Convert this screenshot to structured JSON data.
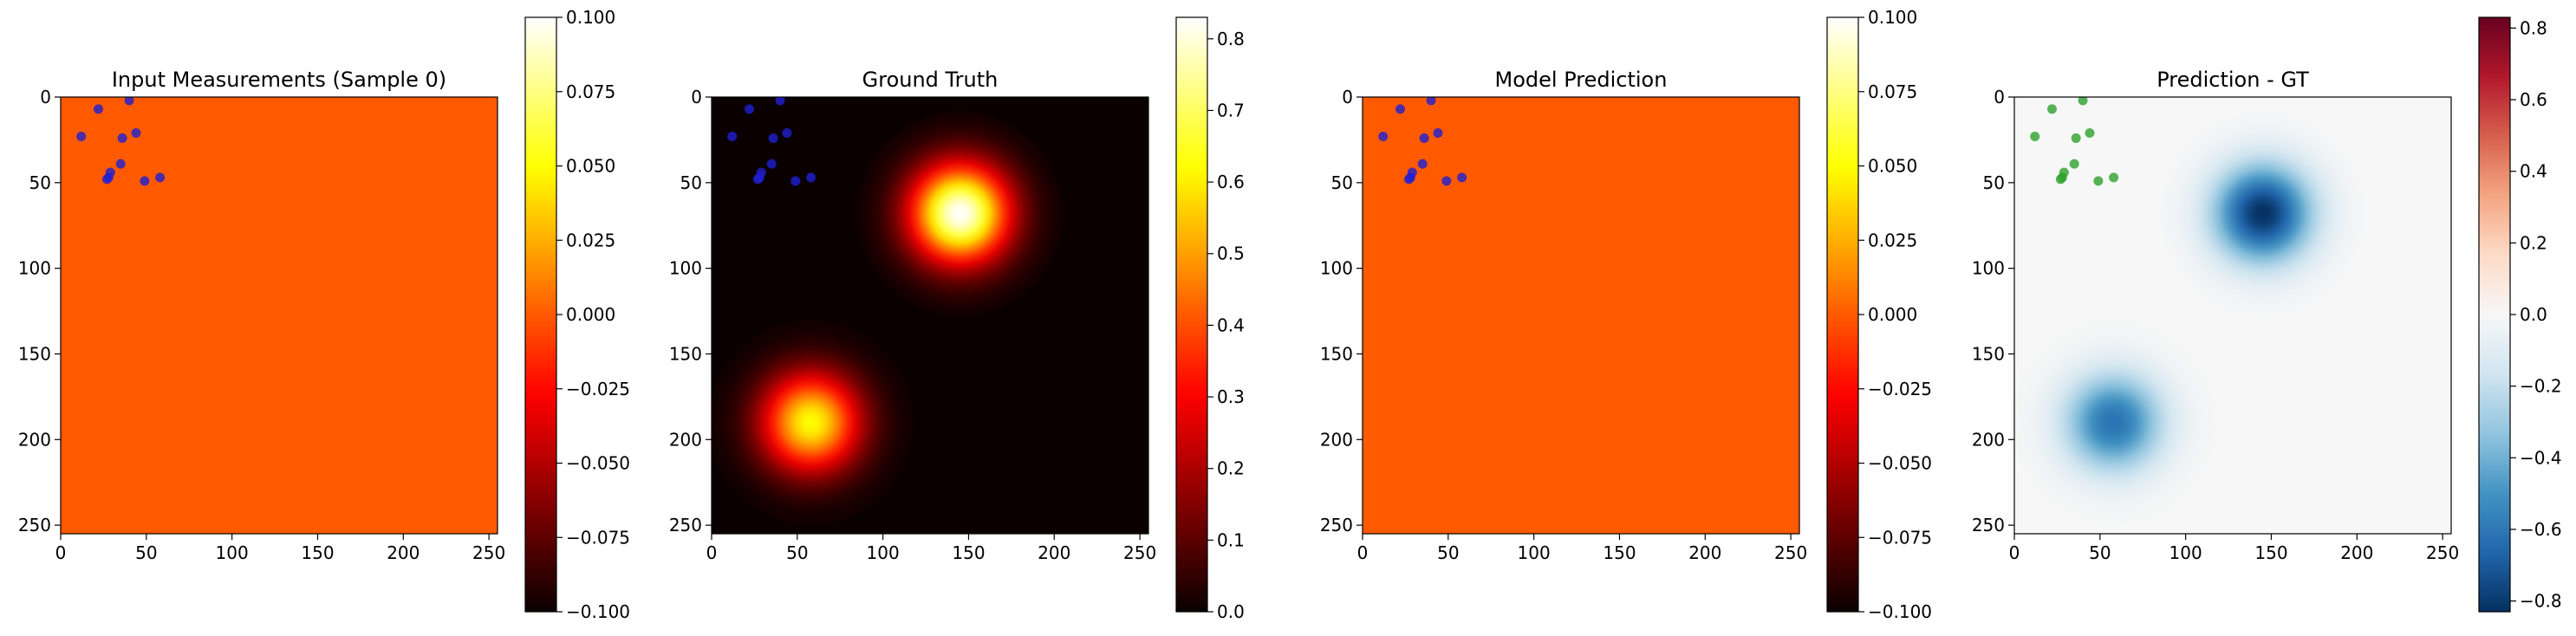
{
  "chart_data": [
    {
      "type": "heatmap",
      "title": "Input Measurements (Sample 0)",
      "field": "constant",
      "colormap": "hot",
      "xlim": [
        0,
        255
      ],
      "ylim": [
        255,
        0
      ],
      "x_ticks": [
        0,
        50,
        100,
        150,
        200,
        250
      ],
      "y_ticks": [
        0,
        50,
        100,
        150,
        200,
        250
      ],
      "colorbar": {
        "range": [
          -0.1,
          0.1
        ],
        "ticks": [
          0.1,
          0.075,
          0.05,
          0.025,
          0.0,
          -0.025,
          -0.05,
          -0.075,
          -0.1
        ],
        "tick_labels": [
          "0.100",
          "0.075",
          "0.050",
          "0.025",
          "0.000",
          "−0.025",
          "−0.050",
          "−0.075",
          "−0.100"
        ]
      },
      "marker_color": "#1f1fd2",
      "points": [
        [
          40,
          2
        ],
        [
          22,
          7
        ],
        [
          12,
          23
        ],
        [
          44,
          21
        ],
        [
          36,
          24
        ],
        [
          35,
          39
        ],
        [
          29,
          44
        ],
        [
          27,
          48
        ],
        [
          28,
          47
        ],
        [
          49,
          49
        ],
        [
          58,
          47
        ]
      ]
    },
    {
      "type": "heatmap",
      "title": "Ground Truth",
      "field": "gaussians",
      "colormap": "hot",
      "xlim": [
        0,
        255
      ],
      "ylim": [
        255,
        0
      ],
      "x_ticks": [
        0,
        50,
        100,
        150,
        200,
        250
      ],
      "y_ticks": [
        0,
        50,
        100,
        150,
        200,
        250
      ],
      "colorbar": {
        "range": [
          0,
          0.83
        ],
        "ticks": [
          0.8,
          0.7,
          0.6,
          0.5,
          0.4,
          0.3,
          0.2,
          0.1,
          0.0
        ],
        "tick_labels": [
          "0.8",
          "0.7",
          "0.6",
          "0.5",
          "0.4",
          "0.3",
          "0.2",
          "0.1",
          "0.0"
        ]
      },
      "blobs": [
        {
          "cx": 145,
          "cy": 68,
          "amp": 0.83
        },
        {
          "cx": 58,
          "cy": 190,
          "amp": 0.62
        }
      ],
      "marker_color": "#1f1fd2",
      "points": [
        [
          40,
          2
        ],
        [
          22,
          7
        ],
        [
          12,
          23
        ],
        [
          44,
          21
        ],
        [
          36,
          24
        ],
        [
          35,
          39
        ],
        [
          29,
          44
        ],
        [
          27,
          48
        ],
        [
          28,
          47
        ],
        [
          49,
          49
        ],
        [
          58,
          47
        ]
      ]
    },
    {
      "type": "heatmap",
      "title": "Model Prediction",
      "field": "constant",
      "colormap": "hot",
      "xlim": [
        0,
        255
      ],
      "ylim": [
        255,
        0
      ],
      "x_ticks": [
        0,
        50,
        100,
        150,
        200,
        250
      ],
      "y_ticks": [
        0,
        50,
        100,
        150,
        200,
        250
      ],
      "colorbar": {
        "range": [
          -0.1,
          0.1
        ],
        "ticks": [
          0.1,
          0.075,
          0.05,
          0.025,
          0.0,
          -0.025,
          -0.05,
          -0.075,
          -0.1
        ],
        "tick_labels": [
          "0.100",
          "0.075",
          "0.050",
          "0.025",
          "0.000",
          "−0.025",
          "−0.050",
          "−0.075",
          "−0.100"
        ]
      },
      "marker_color": "#1f1fd2",
      "points": [
        [
          40,
          2
        ],
        [
          22,
          7
        ],
        [
          12,
          23
        ],
        [
          44,
          21
        ],
        [
          36,
          24
        ],
        [
          35,
          39
        ],
        [
          29,
          44
        ],
        [
          27,
          48
        ],
        [
          28,
          47
        ],
        [
          49,
          49
        ],
        [
          58,
          47
        ]
      ]
    },
    {
      "type": "heatmap",
      "title": "Prediction - GT",
      "field": "neg_gaussians",
      "colormap": "RdBu_r",
      "xlim": [
        0,
        255
      ],
      "ylim": [
        255,
        0
      ],
      "x_ticks": [
        0,
        50,
        100,
        150,
        200,
        250
      ],
      "y_ticks": [
        0,
        50,
        100,
        150,
        200,
        250
      ],
      "colorbar": {
        "range": [
          -0.83,
          0.83
        ],
        "ticks": [
          0.8,
          0.6,
          0.4,
          0.2,
          0.0,
          -0.2,
          -0.4,
          -0.6,
          -0.8
        ],
        "tick_labels": [
          "0.8",
          "0.6",
          "0.4",
          "0.2",
          "0.0",
          "−0.2",
          "−0.4",
          "−0.6",
          "−0.8"
        ]
      },
      "blobs": [
        {
          "cx": 145,
          "cy": 68,
          "amp": 0.83
        },
        {
          "cx": 58,
          "cy": 190,
          "amp": 0.62
        }
      ],
      "marker_color": "#2ca02c",
      "points": [
        [
          40,
          2
        ],
        [
          22,
          7
        ],
        [
          12,
          23
        ],
        [
          44,
          21
        ],
        [
          36,
          24
        ],
        [
          35,
          39
        ],
        [
          29,
          44
        ],
        [
          27,
          48
        ],
        [
          28,
          47
        ],
        [
          49,
          49
        ],
        [
          58,
          47
        ]
      ]
    }
  ]
}
